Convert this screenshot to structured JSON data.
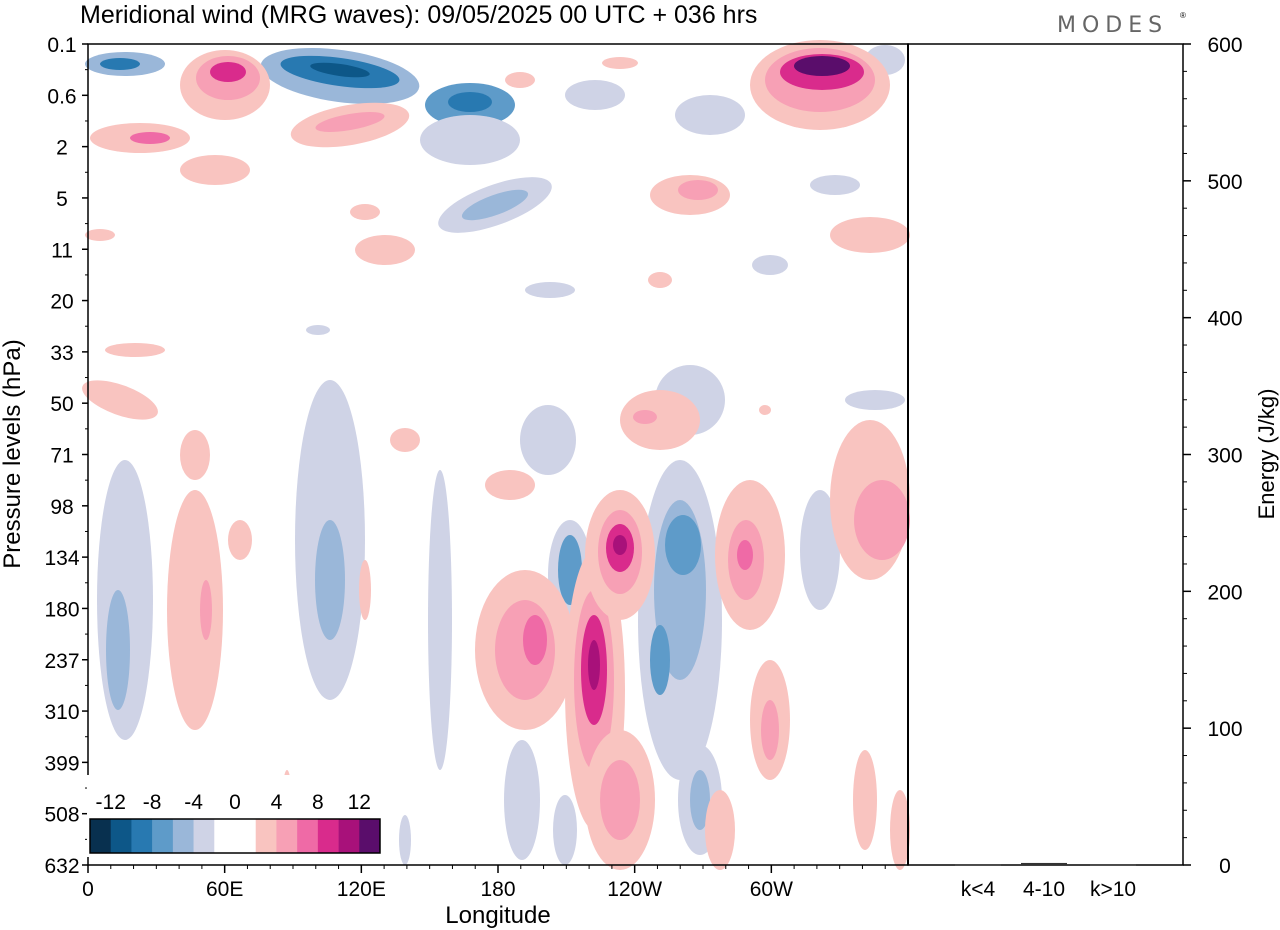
{
  "chart_data": {
    "type": "heatmap",
    "title": "Meridional wind (MRG waves):  09/05/2025  00 UTC  + 036 hrs",
    "brand": "MODES",
    "brand_mark": "®",
    "xlabel": "Longitude",
    "ylabel": "Pressure levels (hPa)",
    "y2label": "Energy (J/kg)",
    "x_ticks": [
      "0",
      "60E",
      "120E",
      "180",
      "120W",
      "60W"
    ],
    "y_ticks": [
      "0.1",
      "0.6",
      "2",
      "5",
      "11",
      "20",
      "33",
      "50",
      "71",
      "98",
      "134",
      "180",
      "237",
      "310",
      "399",
      "508",
      "632"
    ],
    "energy_axis": {
      "ylim": [
        0,
        600
      ],
      "ticks": [
        "0",
        "100",
        "200",
        "300",
        "400",
        "500",
        "600"
      ]
    },
    "energy_bars": {
      "categories": [
        "k<4",
        "4-10",
        "k>10"
      ],
      "values": [
        0.5,
        1.5,
        0.5
      ]
    },
    "colorbar": {
      "labels": [
        "-12",
        "-8",
        "-4",
        "0",
        "4",
        "8",
        "12"
      ],
      "colors": [
        "#08304f",
        "#0d5788",
        "#2879b1",
        "#5e9bc9",
        "#9ab7d9",
        "#cfd3e6",
        "#ffffff",
        "#ffffff",
        "#f9c4c0",
        "#f7a0b5",
        "#ef6aa6",
        "#d92b8c",
        "#a8117a",
        "#5a0d6b"
      ]
    }
  }
}
